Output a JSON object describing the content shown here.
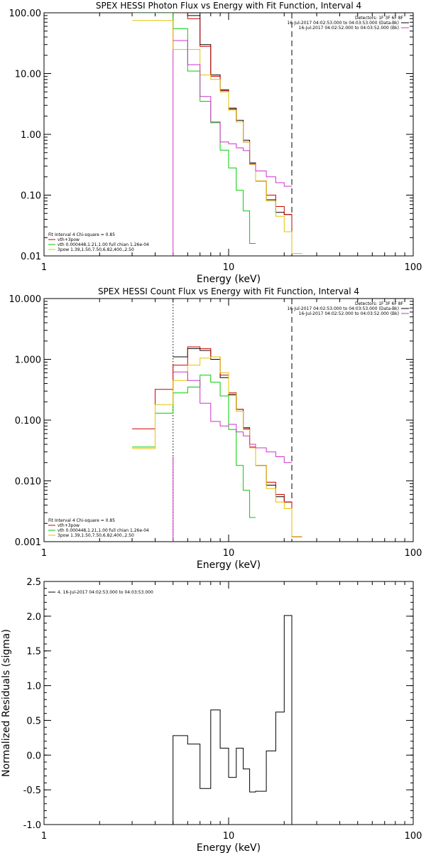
{
  "chart_data": [
    {
      "id": "photon",
      "type": "line",
      "title": "SPEX HESSI Photon Flux vs Energy with Fit Function, Interval 4",
      "xlabel": "Energy (keV)",
      "ylabel": "",
      "xscale": "log",
      "yscale": "log",
      "xlim": [
        1,
        100
      ],
      "ylim": [
        0.01,
        100
      ],
      "xticks": [
        {
          "v": 1,
          "label": "1"
        },
        {
          "v": 10,
          "label": "10"
        },
        {
          "v": 100,
          "label": "100"
        }
      ],
      "yticks": [
        {
          "v": 0.01,
          "label": "0.01"
        },
        {
          "v": 0.1,
          "label": "0.10"
        },
        {
          "v": 1,
          "label": "1.00"
        },
        {
          "v": 10,
          "label": "10.00"
        },
        {
          "v": 100,
          "label": "100.00"
        }
      ],
      "vlines": [
        {
          "x": 5.0,
          "style": "solid",
          "color": "#cc33cc"
        },
        {
          "x": 22.0,
          "style": "dashed",
          "color": "#000000"
        }
      ],
      "info": [
        "Detectors: 1F 3F 6F 8F",
        "16-Jul-2017 04:02:53.000 to 04:03:53.000 (Data-Bk)",
        "16-Jul-2017 04:02:52.000 to 04:03:52.000 (Bk)"
      ],
      "legend_items": [
        {
          "label": "Fit Interval  4   Chi-square = 0.85",
          "color": ""
        },
        {
          "label": "vth+3pow",
          "color": "#cc0000"
        },
        {
          "label": "vth 0.000448,1.21,1.00  full chian 1.26e-04",
          "color": "#00cc00"
        },
        {
          "label": "3pow 1.39,1.50,7.50,6.82,400.,2.50",
          "color": "#e6c200"
        }
      ],
      "series": [
        {
          "name": "Data-Bk",
          "color": "#000000",
          "edges": [
            3,
            4,
            5,
            6,
            7,
            8,
            9,
            10,
            11,
            12,
            13,
            14,
            16,
            18,
            20,
            22,
            25
          ],
          "values": [
            100,
            100,
            100,
            90,
            30,
            9.5,
            5.4,
            2.7,
            1.7,
            0.8,
            0.34,
            0.17,
            0.084,
            0.052,
            0.048,
            0.011
          ]
        },
        {
          "name": "vth+3pow",
          "color": "#cc0000",
          "edges": [
            3,
            4,
            5,
            6,
            7,
            8,
            9,
            10,
            11,
            12,
            13,
            14,
            16,
            18,
            20,
            22,
            25
          ],
          "values": [
            100,
            100,
            100,
            80,
            28,
            9.0,
            5.2,
            2.6,
            1.6,
            0.75,
            0.32,
            0.17,
            0.1,
            0.065,
            0.048,
            0.011
          ]
        },
        {
          "name": "vth",
          "color": "#00cc00",
          "edges": [
            3,
            4,
            5,
            6,
            7,
            8,
            9,
            10,
            11,
            12,
            13,
            14
          ],
          "values": [
            100,
            100,
            55,
            11,
            3.5,
            1.55,
            0.55,
            0.28,
            0.12,
            0.055,
            0.016
          ]
        },
        {
          "name": "3pow",
          "color": "#e6c200",
          "edges": [
            3,
            4,
            5,
            6,
            7,
            8,
            9,
            10,
            11,
            12,
            13,
            14,
            16,
            18,
            20,
            22,
            25
          ],
          "values": [
            75,
            75,
            25,
            25,
            9.5,
            8.0,
            5.0,
            2.5,
            1.6,
            0.75,
            0.32,
            0.17,
            0.08,
            0.045,
            0.025,
            0.011
          ]
        },
        {
          "name": "Bk",
          "color": "#cc33cc",
          "edges": [
            5,
            6,
            7,
            8,
            9,
            10,
            11,
            12,
            13,
            14,
            16,
            18,
            20,
            22
          ],
          "values": [
            35,
            14,
            4.2,
            1.6,
            0.75,
            0.7,
            0.6,
            0.54,
            0.33,
            0.25,
            0.2,
            0.16,
            0.14
          ]
        }
      ]
    },
    {
      "id": "count",
      "type": "line",
      "title": "SPEX HESSI Count Flux vs Energy with Fit Function, Interval 4",
      "xlabel": "Energy (keV)",
      "ylabel": "",
      "xscale": "log",
      "yscale": "log",
      "xlim": [
        1,
        100
      ],
      "ylim": [
        0.001,
        10
      ],
      "xticks": [
        {
          "v": 1,
          "label": "1"
        },
        {
          "v": 10,
          "label": "10"
        },
        {
          "v": 100,
          "label": "100"
        }
      ],
      "yticks": [
        {
          "v": 0.001,
          "label": "0.001"
        },
        {
          "v": 0.01,
          "label": "0.010"
        },
        {
          "v": 0.1,
          "label": "0.100"
        },
        {
          "v": 1,
          "label": "1.000"
        },
        {
          "v": 10,
          "label": "10.000"
        }
      ],
      "vlines": [
        {
          "x": 5.0,
          "style": "dotted",
          "color": "#000000"
        },
        {
          "x": 5.0,
          "style": "solid",
          "color": "#cc33cc",
          "from_top": 0.65
        },
        {
          "x": 22.0,
          "style": "dashed",
          "color": "#000000"
        }
      ],
      "info": [
        "Detectors: 1F 3F 6F 8F",
        "16-Jul-2017 04:02:53.000 to 04:03:53.000 (Data-Bk)",
        "16-Jul-2017 04:02:52.000 to 04:03:52.000 (Bk)"
      ],
      "legend_items": [
        {
          "label": "Fit Interval  4   Chi-square = 0.85",
          "color": ""
        },
        {
          "label": "vth+3pow",
          "color": "#cc0000"
        },
        {
          "label": "vth 0.000448,1.21,1.00  full chian 1.26e-04",
          "color": "#00cc00"
        },
        {
          "label": "3pow 1.39,1.50,7.50,6.82,400.,2.50",
          "color": "#e6c200"
        }
      ],
      "series": [
        {
          "name": "Data-Bk",
          "color": "#000000",
          "edges": [
            5,
            6,
            7,
            8,
            9,
            10,
            11,
            12,
            13,
            14,
            16,
            18,
            20,
            22,
            25
          ],
          "values": [
            1.1,
            1.5,
            1.4,
            1.0,
            0.5,
            0.26,
            0.15,
            0.075,
            0.035,
            0.018,
            0.0085,
            0.0055,
            0.0045,
            0.0012
          ]
        },
        {
          "name": "vth+3pow",
          "color": "#cc0000",
          "edges": [
            3,
            4,
            5,
            6,
            7,
            8,
            9,
            10,
            11,
            12,
            13,
            14,
            16,
            18,
            20,
            22,
            25
          ],
          "values": [
            0.072,
            0.32,
            0.8,
            1.6,
            1.5,
            1.1,
            0.55,
            0.28,
            0.15,
            0.072,
            0.036,
            0.018,
            0.0095,
            0.006,
            0.0045,
            0.0012
          ]
        },
        {
          "name": "vth",
          "color": "#00cc00",
          "edges": [
            3,
            4,
            5,
            6,
            7,
            8,
            9,
            10,
            11,
            12,
            13,
            14
          ],
          "values": [
            0.036,
            0.13,
            0.28,
            0.35,
            0.55,
            0.42,
            0.25,
            0.07,
            0.018,
            0.007,
            0.0025
          ]
        },
        {
          "name": "3pow",
          "color": "#e6c200",
          "edges": [
            3,
            4,
            5,
            6,
            7,
            8,
            9,
            10,
            11,
            12,
            13,
            14,
            16,
            18,
            20,
            22,
            25
          ],
          "values": [
            0.034,
            0.18,
            0.45,
            0.8,
            1.05,
            1.1,
            0.6,
            0.27,
            0.14,
            0.07,
            0.035,
            0.018,
            0.0075,
            0.0045,
            0.0035,
            0.0012
          ]
        },
        {
          "name": "Bk",
          "color": "#cc33cc",
          "edges": [
            5,
            6,
            7,
            8,
            9,
            10,
            11,
            12,
            13,
            14,
            16,
            18,
            20,
            22
          ],
          "values": [
            0.62,
            0.45,
            0.19,
            0.095,
            0.08,
            0.085,
            0.064,
            0.055,
            0.04,
            0.035,
            0.03,
            0.025,
            0.02
          ]
        }
      ]
    },
    {
      "id": "resid",
      "type": "line",
      "title": "",
      "xlabel": "Energy (keV)",
      "ylabel": "Normalized Residuals (sigma)",
      "xscale": "log",
      "yscale": "linear",
      "xlim": [
        1,
        100
      ],
      "ylim": [
        -1.0,
        2.5
      ],
      "xticks": [
        {
          "v": 1,
          "label": "1"
        },
        {
          "v": 10,
          "label": "10"
        },
        {
          "v": 100,
          "label": "100"
        }
      ],
      "yticks": [
        {
          "v": -1.0,
          "label": "-1.0"
        },
        {
          "v": -0.5,
          "label": "-0.5"
        },
        {
          "v": 0.0,
          "label": "0.0"
        },
        {
          "v": 0.5,
          "label": "0.5"
        },
        {
          "v": 1.0,
          "label": "1.0"
        },
        {
          "v": 1.5,
          "label": "1.5"
        },
        {
          "v": 2.0,
          "label": "2.0"
        },
        {
          "v": 2.5,
          "label": "2.5"
        }
      ],
      "vlines": [],
      "info": [],
      "legend_items": [
        {
          "label": "4. 16-Jul-2017 04:02:53.000 to 04:03:53.000",
          "color": "#000000"
        }
      ],
      "series": [
        {
          "name": "4. 16-Jul-2017 04:02:53.000 to 04:03:53.000",
          "color": "#000000",
          "edges": [
            5,
            6,
            7,
            8,
            9,
            10,
            11,
            12,
            13,
            14,
            16,
            18,
            20,
            22
          ],
          "values": [
            0.28,
            0.16,
            -0.48,
            0.65,
            0.1,
            -0.32,
            0.1,
            -0.2,
            -0.53,
            -0.52,
            0.06,
            0.62,
            2.01
          ],
          "drop_to_bottom": true
        }
      ]
    }
  ]
}
